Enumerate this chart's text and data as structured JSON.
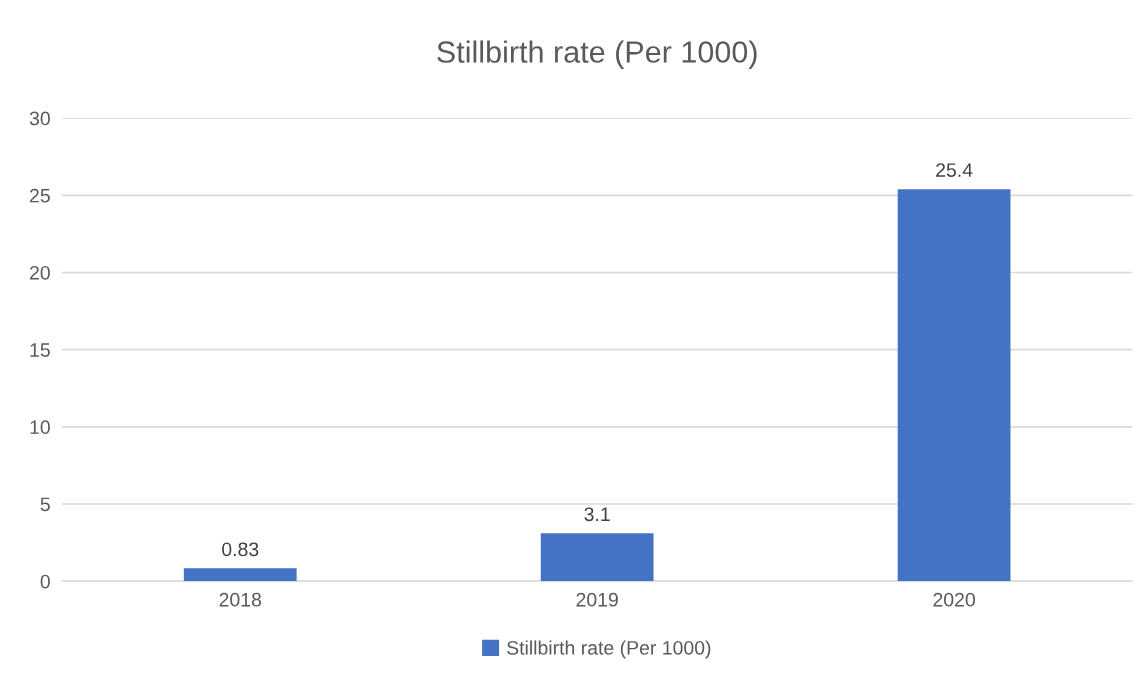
{
  "chart_data": {
    "type": "bar",
    "title": "Stillbirth rate (Per 1000)",
    "categories": [
      "2018",
      "2019",
      "2020"
    ],
    "series": [
      {
        "name": "Stillbirth rate (Per 1000)",
        "color": "#4472c4",
        "values": [
          0.83,
          3.1,
          25.4
        ]
      }
    ],
    "ylim": [
      0,
      30
    ],
    "yticks": [
      0,
      5,
      10,
      15,
      20,
      25,
      30
    ],
    "grid": "y",
    "legend": "bottom",
    "data_labels": true
  }
}
